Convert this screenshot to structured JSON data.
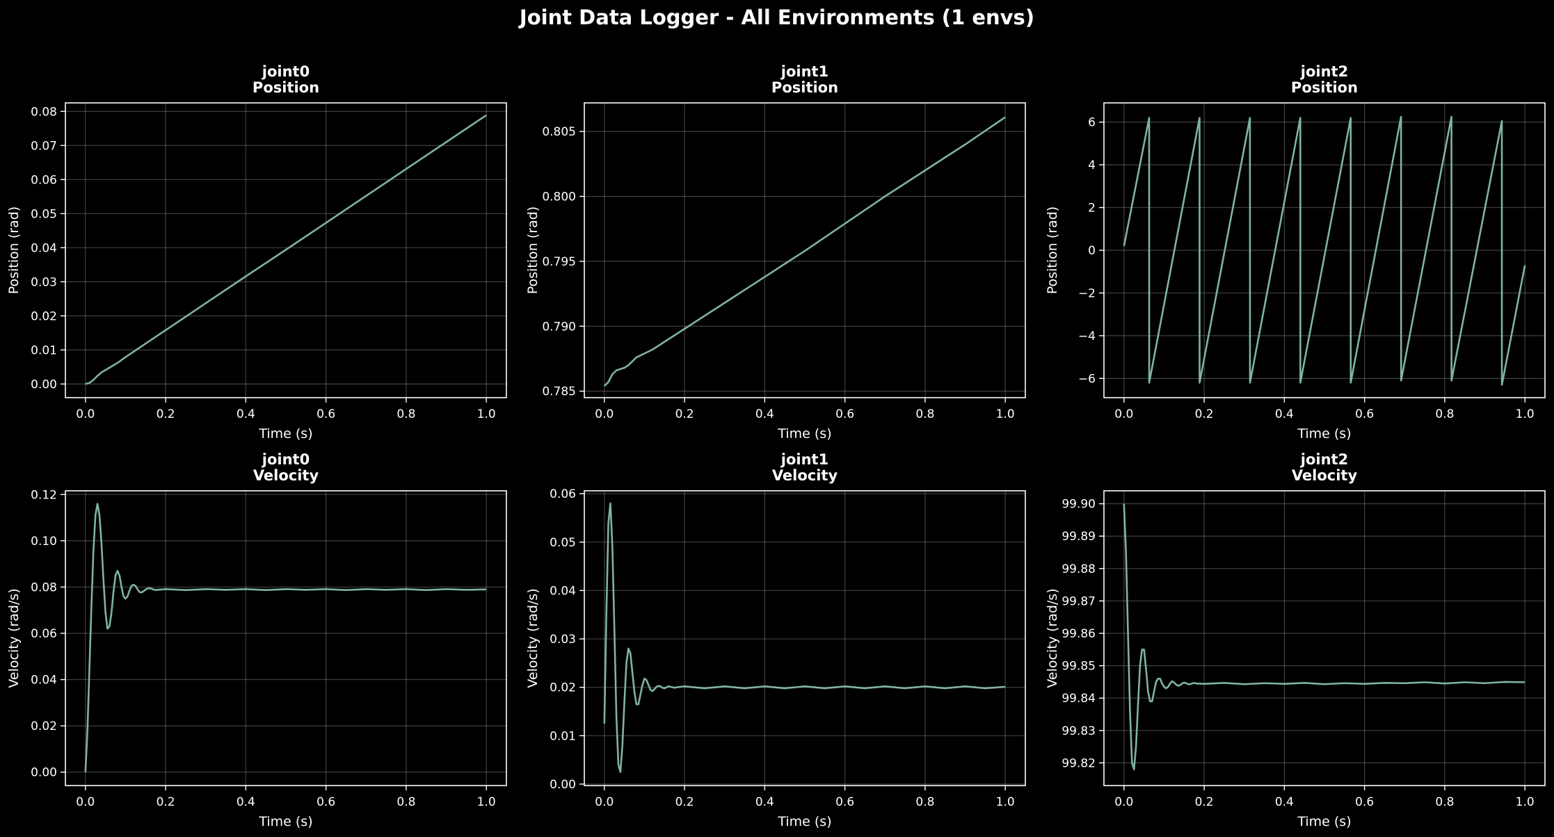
{
  "figure": {
    "title": "Joint Data Logger - All Environments (1 envs)",
    "line_color": "#7fb3a4",
    "background": "#000000"
  },
  "chart_data": [
    {
      "type": "line",
      "title": "joint0\nPosition",
      "xlabel": "Time (s)",
      "ylabel": "Position (rad)",
      "xlim": [
        -0.05,
        1.05
      ],
      "ylim": [
        -0.004,
        0.0825
      ],
      "xticks": [
        "0.0",
        "0.2",
        "0.4",
        "0.6",
        "0.8",
        "1.0"
      ],
      "yticks": [
        "0.00",
        "0.01",
        "0.02",
        "0.03",
        "0.04",
        "0.05",
        "0.06",
        "0.07",
        "0.08"
      ],
      "grid": true,
      "series": [
        {
          "x": [
            0.0,
            0.01,
            0.02,
            0.03,
            0.04,
            0.05,
            0.06,
            0.08,
            0.1,
            0.2,
            0.3,
            0.4,
            0.5,
            0.6,
            0.7,
            0.8,
            0.9,
            1.0
          ],
          "y": [
            0.0,
            0.0003,
            0.0012,
            0.0024,
            0.0034,
            0.0041,
            0.0048,
            0.0062,
            0.0079,
            0.0158,
            0.0237,
            0.0316,
            0.0394,
            0.0473,
            0.0552,
            0.0631,
            0.071,
            0.0789
          ]
        }
      ]
    },
    {
      "type": "line",
      "title": "joint1\nPosition",
      "xlabel": "Time (s)",
      "ylabel": "Position (rad)",
      "xlim": [
        -0.05,
        1.05
      ],
      "ylim": [
        0.7845,
        0.8072
      ],
      "xticks": [
        "0.0",
        "0.2",
        "0.4",
        "0.6",
        "0.8",
        "1.0"
      ],
      "yticks": [
        "0.785",
        "0.790",
        "0.795",
        "0.800",
        "0.805"
      ],
      "grid": true,
      "series": [
        {
          "x": [
            0.0,
            0.01,
            0.02,
            0.03,
            0.04,
            0.05,
            0.06,
            0.08,
            0.1,
            0.12,
            0.2,
            0.3,
            0.4,
            0.5,
            0.6,
            0.7,
            0.8,
            0.9,
            1.0
          ],
          "y": [
            0.7854,
            0.7857,
            0.7863,
            0.7866,
            0.7867,
            0.7868,
            0.787,
            0.7876,
            0.7879,
            0.7882,
            0.7898,
            0.7918,
            0.7938,
            0.7958,
            0.7979,
            0.8,
            0.802,
            0.804,
            0.8061
          ]
        }
      ]
    },
    {
      "type": "line",
      "title": "joint2\nPosition",
      "xlabel": "Time (s)",
      "ylabel": "Position (rad)",
      "xlim": [
        -0.05,
        1.05
      ],
      "ylim": [
        -6.9,
        6.9
      ],
      "xticks": [
        "0.0",
        "0.2",
        "0.4",
        "0.6",
        "0.8",
        "1.0"
      ],
      "yticks": [
        "−6",
        "−4",
        "−2",
        "0",
        "2",
        "4",
        "6"
      ],
      "grid": true,
      "series": [
        {
          "x": [
            0.0,
            0.0628,
            0.0629,
            0.1885,
            0.1886,
            0.3142,
            0.3143,
            0.4398,
            0.4399,
            0.5655,
            0.5656,
            0.6911,
            0.6912,
            0.8168,
            0.8169,
            0.9425,
            0.9426,
            1.0
          ],
          "y": [
            0.2,
            6.2,
            -6.2,
            6.2,
            -6.2,
            6.2,
            -6.2,
            6.2,
            -6.2,
            6.2,
            -6.2,
            6.25,
            -6.1,
            6.25,
            -6.1,
            6.05,
            -6.3,
            -0.7
          ]
        }
      ]
    },
    {
      "type": "line",
      "title": "joint0\nVelocity",
      "xlabel": "Time (s)",
      "ylabel": "Velocity (rad/s)",
      "xlim": [
        -0.05,
        1.05
      ],
      "ylim": [
        -0.0058,
        0.1216
      ],
      "xticks": [
        "0.0",
        "0.2",
        "0.4",
        "0.6",
        "0.8",
        "1.0"
      ],
      "yticks": [
        "0.00",
        "0.02",
        "0.04",
        "0.06",
        "0.08",
        "0.10",
        "0.12"
      ],
      "grid": true,
      "series": [
        {
          "x": [
            0.0,
            0.005,
            0.01,
            0.015,
            0.02,
            0.025,
            0.03,
            0.035,
            0.04,
            0.045,
            0.05,
            0.055,
            0.06,
            0.065,
            0.07,
            0.075,
            0.08,
            0.085,
            0.09,
            0.095,
            0.1,
            0.105,
            0.11,
            0.115,
            0.12,
            0.125,
            0.13,
            0.135,
            0.14,
            0.145,
            0.15,
            0.155,
            0.16,
            0.165,
            0.17,
            0.175,
            0.18,
            0.2,
            0.25,
            0.3,
            0.35,
            0.4,
            0.45,
            0.5,
            0.55,
            0.6,
            0.65,
            0.7,
            0.75,
            0.8,
            0.85,
            0.9,
            0.95,
            1.0
          ],
          "y": [
            0.0,
            0.018,
            0.045,
            0.072,
            0.096,
            0.111,
            0.116,
            0.111,
            0.099,
            0.083,
            0.069,
            0.062,
            0.063,
            0.069,
            0.078,
            0.085,
            0.087,
            0.085,
            0.08,
            0.076,
            0.075,
            0.076,
            0.0785,
            0.0805,
            0.081,
            0.0805,
            0.079,
            0.0778,
            0.0777,
            0.0782,
            0.0789,
            0.0794,
            0.0795,
            0.0793,
            0.0789,
            0.0787,
            0.0788,
            0.0791,
            0.0787,
            0.0791,
            0.0788,
            0.0791,
            0.0787,
            0.0791,
            0.0788,
            0.0791,
            0.0787,
            0.0791,
            0.0788,
            0.0791,
            0.0787,
            0.0791,
            0.0788,
            0.079
          ]
        }
      ]
    },
    {
      "type": "line",
      "title": "joint1\nVelocity",
      "xlabel": "Time (s)",
      "ylabel": "Velocity (rad/s)",
      "xlim": [
        -0.05,
        1.05
      ],
      "ylim": [
        -0.0003,
        0.0606
      ],
      "xticks": [
        "0.0",
        "0.2",
        "0.4",
        "0.6",
        "0.8",
        "1.0"
      ],
      "yticks": [
        "0.00",
        "0.01",
        "0.02",
        "0.03",
        "0.04",
        "0.05",
        "0.06"
      ],
      "grid": true,
      "series": [
        {
          "x": [
            0.0,
            0.005,
            0.01,
            0.015,
            0.02,
            0.025,
            0.03,
            0.035,
            0.04,
            0.045,
            0.05,
            0.055,
            0.06,
            0.065,
            0.07,
            0.075,
            0.08,
            0.085,
            0.09,
            0.095,
            0.1,
            0.105,
            0.11,
            0.115,
            0.12,
            0.125,
            0.13,
            0.135,
            0.14,
            0.145,
            0.15,
            0.155,
            0.16,
            0.165,
            0.17,
            0.175,
            0.18,
            0.2,
            0.25,
            0.3,
            0.35,
            0.4,
            0.45,
            0.5,
            0.55,
            0.6,
            0.65,
            0.7,
            0.75,
            0.8,
            0.85,
            0.9,
            0.95,
            1.0
          ],
          "y": [
            0.0125,
            0.035,
            0.054,
            0.058,
            0.049,
            0.032,
            0.014,
            0.004,
            0.0025,
            0.008,
            0.017,
            0.025,
            0.028,
            0.027,
            0.023,
            0.019,
            0.0165,
            0.0165,
            0.0185,
            0.0205,
            0.0218,
            0.0215,
            0.0205,
            0.0195,
            0.0192,
            0.0196,
            0.0201,
            0.0203,
            0.0202,
            0.0199,
            0.0198,
            0.02,
            0.0202,
            0.0201,
            0.02,
            0.0199,
            0.02,
            0.0202,
            0.0198,
            0.0202,
            0.0198,
            0.0202,
            0.0198,
            0.0202,
            0.0198,
            0.0202,
            0.0198,
            0.0202,
            0.0198,
            0.0202,
            0.0198,
            0.0202,
            0.0198,
            0.0201
          ]
        }
      ]
    },
    {
      "type": "line",
      "title": "joint2\nVelocity",
      "xlabel": "Time (s)",
      "ylabel": "Velocity (rad/s)",
      "xlim": [
        -0.05,
        1.05
      ],
      "ylim": [
        99.813,
        99.904
      ],
      "xticks": [
        "0.0",
        "0.2",
        "0.4",
        "0.6",
        "0.8",
        "1.0"
      ],
      "yticks": [
        "99.82",
        "99.83",
        "99.84",
        "99.85",
        "99.86",
        "99.87",
        "99.88",
        "99.89",
        "99.90"
      ],
      "grid": true,
      "series": [
        {
          "x": [
            0.0,
            0.005,
            0.01,
            0.015,
            0.02,
            0.025,
            0.03,
            0.035,
            0.04,
            0.045,
            0.05,
            0.055,
            0.06,
            0.065,
            0.07,
            0.075,
            0.08,
            0.085,
            0.09,
            0.095,
            0.1,
            0.105,
            0.11,
            0.115,
            0.12,
            0.125,
            0.13,
            0.135,
            0.14,
            0.145,
            0.15,
            0.155,
            0.16,
            0.165,
            0.17,
            0.175,
            0.18,
            0.2,
            0.25,
            0.3,
            0.35,
            0.4,
            0.45,
            0.5,
            0.55,
            0.6,
            0.65,
            0.7,
            0.75,
            0.8,
            0.85,
            0.9,
            0.95,
            1.0
          ],
          "y": [
            99.9,
            99.885,
            99.86,
            99.836,
            99.82,
            99.818,
            99.825,
            99.838,
            99.85,
            99.855,
            99.855,
            99.849,
            99.842,
            99.839,
            99.839,
            99.842,
            99.845,
            99.846,
            99.846,
            99.8445,
            99.8435,
            99.843,
            99.8435,
            99.8445,
            99.8452,
            99.8448,
            99.8442,
            99.8438,
            99.844,
            99.8445,
            99.8448,
            99.8446,
            99.8443,
            99.8443,
            99.8445,
            99.8447,
            99.8445,
            99.8444,
            99.8447,
            99.8443,
            99.8446,
            99.8444,
            99.8447,
            99.8443,
            99.8446,
            99.8444,
            99.8447,
            99.8446,
            99.8449,
            99.8445,
            99.8449,
            99.8446,
            99.845,
            99.8449
          ]
        }
      ]
    }
  ]
}
